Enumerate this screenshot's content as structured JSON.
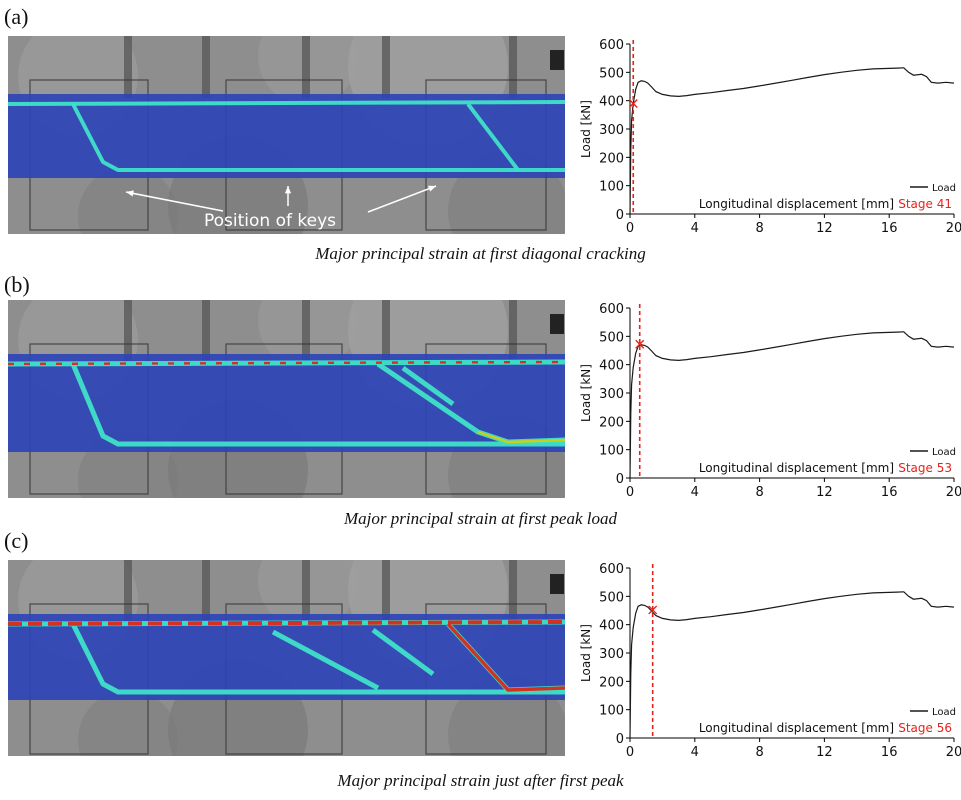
{
  "panels": [
    {
      "label": "(a)",
      "caption": "Major principal strain at first diagonal cracking"
    },
    {
      "label": "(b)",
      "caption": "Major principal strain at first peak load"
    },
    {
      "label": "(c)",
      "caption": "Major principal strain just after first peak"
    }
  ],
  "annotation": {
    "text": "Position of keys"
  },
  "colors": {
    "line": "#1a1a1a",
    "marker": "#e8221a",
    "stage_text": "#e8221a",
    "strain_low": "#2c43b8",
    "strain_mid": "#3fe0c8",
    "strain_high": "#e02010",
    "concrete": "#8e8e8e"
  },
  "chart_data": [
    {
      "type": "line",
      "xlabel": "Longitudinal displacement [mm]",
      "ylabel": "Load [kN]",
      "xlim": [
        0,
        20
      ],
      "ylim": [
        0,
        600
      ],
      "xticks": [
        0,
        4,
        8,
        12,
        16,
        20
      ],
      "yticks": [
        0,
        100,
        200,
        300,
        400,
        500,
        600
      ],
      "legend": "Load",
      "legend_position": "bottom-right",
      "stage": "Stage 41",
      "marker": {
        "x": 0.2,
        "y": 390
      },
      "series": [
        {
          "name": "Load",
          "x": [
            0,
            0.05,
            0.1,
            0.2,
            0.35,
            0.5,
            0.7,
            0.9,
            1.1,
            1.3,
            1.6,
            2.0,
            2.5,
            3.0,
            3.5,
            4.0,
            5.0,
            6.0,
            7.0,
            8.0,
            9.0,
            10.0,
            11.0,
            12.0,
            13.0,
            14.0,
            15.0,
            16.0,
            16.5,
            16.9,
            17.2,
            17.5,
            18.0,
            18.3,
            18.6,
            19.0,
            19.5,
            20.0
          ],
          "y": [
            0,
            230,
            330,
            390,
            440,
            465,
            470,
            468,
            462,
            450,
            432,
            422,
            417,
            415,
            418,
            422,
            428,
            436,
            443,
            452,
            462,
            472,
            482,
            492,
            500,
            507,
            512,
            514,
            515,
            516,
            500,
            490,
            493,
            485,
            465,
            462,
            465,
            462
          ]
        }
      ]
    },
    {
      "type": "line",
      "xlabel": "Longitudinal displacement [mm]",
      "ylabel": "Load [kN]",
      "xlim": [
        0,
        20
      ],
      "ylim": [
        0,
        600
      ],
      "xticks": [
        0,
        4,
        8,
        12,
        16,
        20
      ],
      "yticks": [
        0,
        100,
        200,
        300,
        400,
        500,
        600
      ],
      "legend": "Load",
      "legend_position": "bottom-right",
      "stage": "Stage 53",
      "marker": {
        "x": 0.6,
        "y": 472
      },
      "series": [
        {
          "name": "Load",
          "x": [
            0,
            0.05,
            0.1,
            0.2,
            0.35,
            0.5,
            0.7,
            0.9,
            1.1,
            1.3,
            1.6,
            2.0,
            2.5,
            3.0,
            3.5,
            4.0,
            5.0,
            6.0,
            7.0,
            8.0,
            9.0,
            10.0,
            11.0,
            12.0,
            13.0,
            14.0,
            15.0,
            16.0,
            16.5,
            16.9,
            17.2,
            17.5,
            18.0,
            18.3,
            18.6,
            19.0,
            19.5,
            20.0
          ],
          "y": [
            0,
            230,
            330,
            390,
            440,
            465,
            470,
            468,
            462,
            450,
            432,
            422,
            417,
            415,
            418,
            422,
            428,
            436,
            443,
            452,
            462,
            472,
            482,
            492,
            500,
            507,
            512,
            514,
            515,
            516,
            500,
            490,
            493,
            485,
            465,
            462,
            465,
            462
          ]
        }
      ]
    },
    {
      "type": "line",
      "xlabel": "Longitudinal displacement [mm]",
      "ylabel": "Load [kN]",
      "xlim": [
        0,
        20
      ],
      "ylim": [
        0,
        600
      ],
      "xticks": [
        0,
        4,
        8,
        12,
        16,
        20
      ],
      "yticks": [
        0,
        100,
        200,
        300,
        400,
        500,
        600
      ],
      "legend": "Load",
      "legend_position": "bottom-right",
      "stage": "Stage 56",
      "marker": {
        "x": 1.4,
        "y": 452
      },
      "series": [
        {
          "name": "Load",
          "x": [
            0,
            0.05,
            0.1,
            0.2,
            0.35,
            0.5,
            0.7,
            0.9,
            1.1,
            1.3,
            1.6,
            2.0,
            2.5,
            3.0,
            3.5,
            4.0,
            5.0,
            6.0,
            7.0,
            8.0,
            9.0,
            10.0,
            11.0,
            12.0,
            13.0,
            14.0,
            15.0,
            16.0,
            16.5,
            16.9,
            17.2,
            17.5,
            18.0,
            18.3,
            18.6,
            19.0,
            19.5,
            20.0
          ],
          "y": [
            0,
            230,
            330,
            390,
            440,
            465,
            470,
            468,
            462,
            450,
            432,
            422,
            417,
            415,
            418,
            422,
            428,
            436,
            443,
            452,
            462,
            472,
            482,
            492,
            500,
            507,
            512,
            514,
            515,
            516,
            500,
            490,
            493,
            485,
            465,
            462,
            465,
            462
          ]
        }
      ]
    }
  ]
}
